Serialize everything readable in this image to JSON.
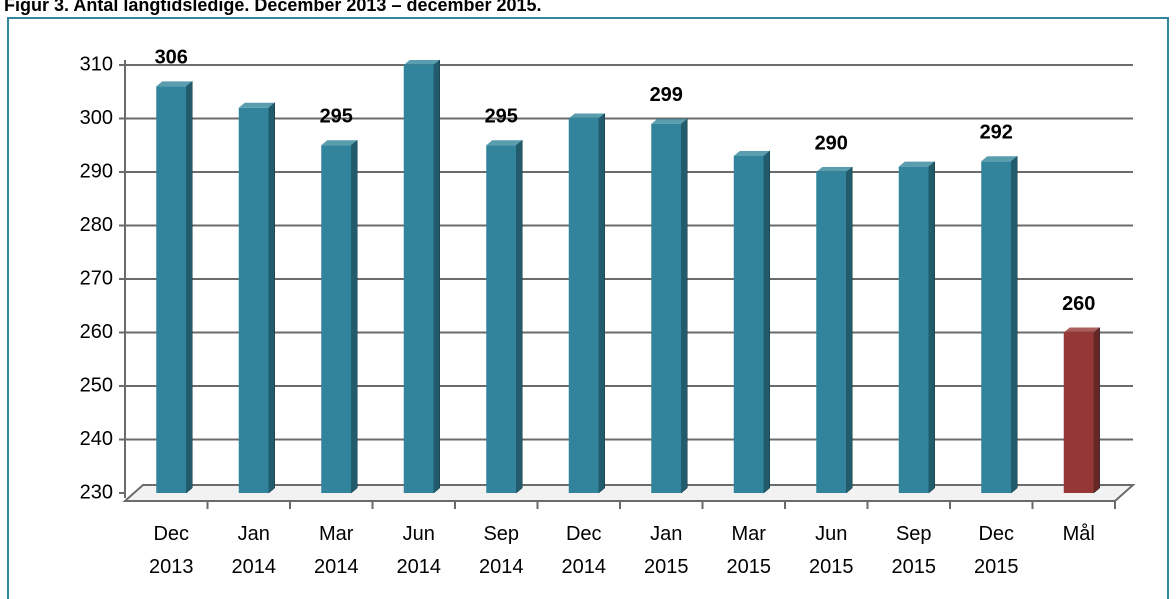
{
  "chart_data": {
    "type": "bar",
    "title": "Figur 3. Antal langtidsledige. December 2013 – december 2015.",
    "categories": [
      "Dec 2013",
      "Jan 2014",
      "Mar 2014",
      "Jun 2014",
      "Sep 2014",
      "Dec 2014",
      "Jan 2015",
      "Mar 2015",
      "Jun 2015",
      "Sep 2015",
      "Dec 2015",
      "Mål"
    ],
    "values": [
      306,
      302,
      295,
      310,
      295,
      300,
      299,
      293,
      290,
      291,
      292,
      260
    ],
    "value_labels": [
      "306",
      null,
      "295",
      null,
      "295",
      null,
      "299",
      null,
      "290",
      null,
      "292",
      "260"
    ],
    "colors": [
      "#31849b",
      "#31849b",
      "#31849b",
      "#31849b",
      "#31849b",
      "#31849b",
      "#31849b",
      "#31849b",
      "#31849b",
      "#31849b",
      "#31849b",
      "#953735"
    ],
    "ylim": [
      230,
      310
    ],
    "yticks": [
      230,
      240,
      250,
      260,
      270,
      280,
      290,
      300,
      310
    ],
    "grid": true
  }
}
